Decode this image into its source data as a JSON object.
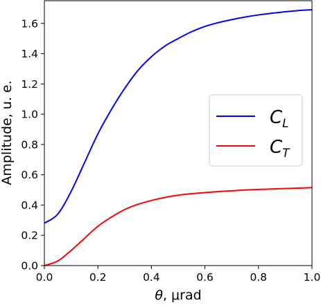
{
  "chart_data": {
    "type": "line",
    "title": "",
    "xlabel": {
      "symbol": "θ",
      "rest": ", μrad"
    },
    "ylabel": "Amplitude, u. e.",
    "xlim": [
      0.0,
      1.0
    ],
    "ylim": [
      0.0,
      1.75
    ],
    "xticks": [
      "0.0",
      "0.2",
      "0.4",
      "0.6",
      "0.8",
      "1.0"
    ],
    "yticks": [
      "0.0",
      "0.2",
      "0.4",
      "0.6",
      "0.8",
      "1.0",
      "1.2",
      "1.4",
      "1.6"
    ],
    "grid": false,
    "legend_position": "right",
    "series": [
      {
        "name": "C",
        "sub": "L",
        "color": "#0000ff",
        "x": [
          0.0,
          0.05,
          0.1,
          0.15,
          0.2,
          0.25,
          0.3,
          0.35,
          0.4,
          0.45,
          0.5,
          0.55,
          0.6,
          0.65,
          0.7,
          0.75,
          0.8,
          0.85,
          0.9,
          0.95,
          1.0
        ],
        "y": [
          0.28,
          0.34,
          0.49,
          0.68,
          0.87,
          1.03,
          1.17,
          1.29,
          1.38,
          1.45,
          1.5,
          1.545,
          1.58,
          1.605,
          1.625,
          1.642,
          1.656,
          1.667,
          1.677,
          1.685,
          1.69
        ]
      },
      {
        "name": "C",
        "sub": "T",
        "color": "#ff0000",
        "x": [
          0.0,
          0.05,
          0.1,
          0.15,
          0.2,
          0.25,
          0.3,
          0.35,
          0.4,
          0.45,
          0.5,
          0.55,
          0.6,
          0.65,
          0.7,
          0.75,
          0.8,
          0.85,
          0.9,
          0.95,
          1.0
        ],
        "y": [
          0.0,
          0.03,
          0.1,
          0.18,
          0.26,
          0.32,
          0.37,
          0.405,
          0.43,
          0.45,
          0.465,
          0.475,
          0.482,
          0.489,
          0.494,
          0.499,
          0.503,
          0.506,
          0.509,
          0.512,
          0.515
        ]
      }
    ]
  }
}
